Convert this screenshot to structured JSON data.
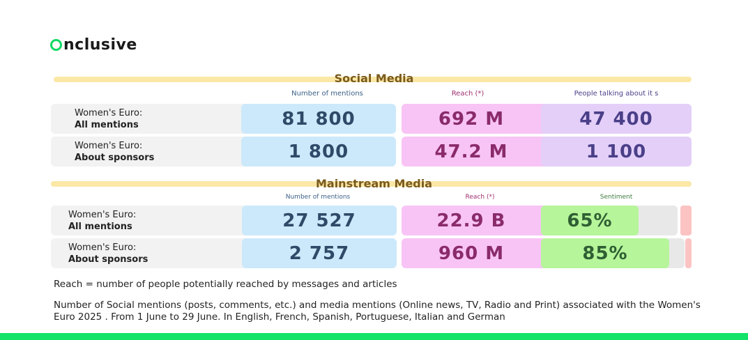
{
  "brand": {
    "logo_text": "nclusive",
    "accent": "#13e369"
  },
  "social": {
    "title": "Social Media",
    "headers": {
      "mentions": "Number of mentions",
      "reach": "Reach (*)",
      "people": "People talking about it s"
    },
    "rows": [
      {
        "label_line1": "Women's Euro:",
        "label_line2": "All mentions",
        "mentions": "81 800",
        "reach": "692 M",
        "people": "47 400"
      },
      {
        "label_line1": "Women's Euro:",
        "label_line2": "About sponsors",
        "mentions": "1 800",
        "reach": "47.2 M",
        "people": "1 100"
      }
    ]
  },
  "mainstream": {
    "title": "Mainstream Media",
    "headers": {
      "mentions": "Number of mentions",
      "reach": "Reach (*)",
      "sentiment": "Sentiment"
    },
    "rows": [
      {
        "label_line1": "Women's Euro:",
        "label_line2": "All mentions",
        "mentions": "27 527",
        "reach": "22.9 B",
        "sentiment": "65%",
        "sentiment_positive": 0.65
      },
      {
        "label_line1": "Women's Euro:",
        "label_line2": "About sponsors",
        "mentions": "2 757",
        "reach": "960 M",
        "sentiment": "85%",
        "sentiment_positive": 0.85
      }
    ]
  },
  "notes": {
    "reach": "Reach = number of people potentially reached by messages and articles",
    "scope_line1": "Number of Social mentions (posts, comments, etc.) and media mentions (Online news, TV, Radio and Print) associated with the Women's",
    "scope_line2": "Euro 2025 . From 1 June to 29 June. In English, French, Spanish, Portuguese, Italian and German"
  }
}
